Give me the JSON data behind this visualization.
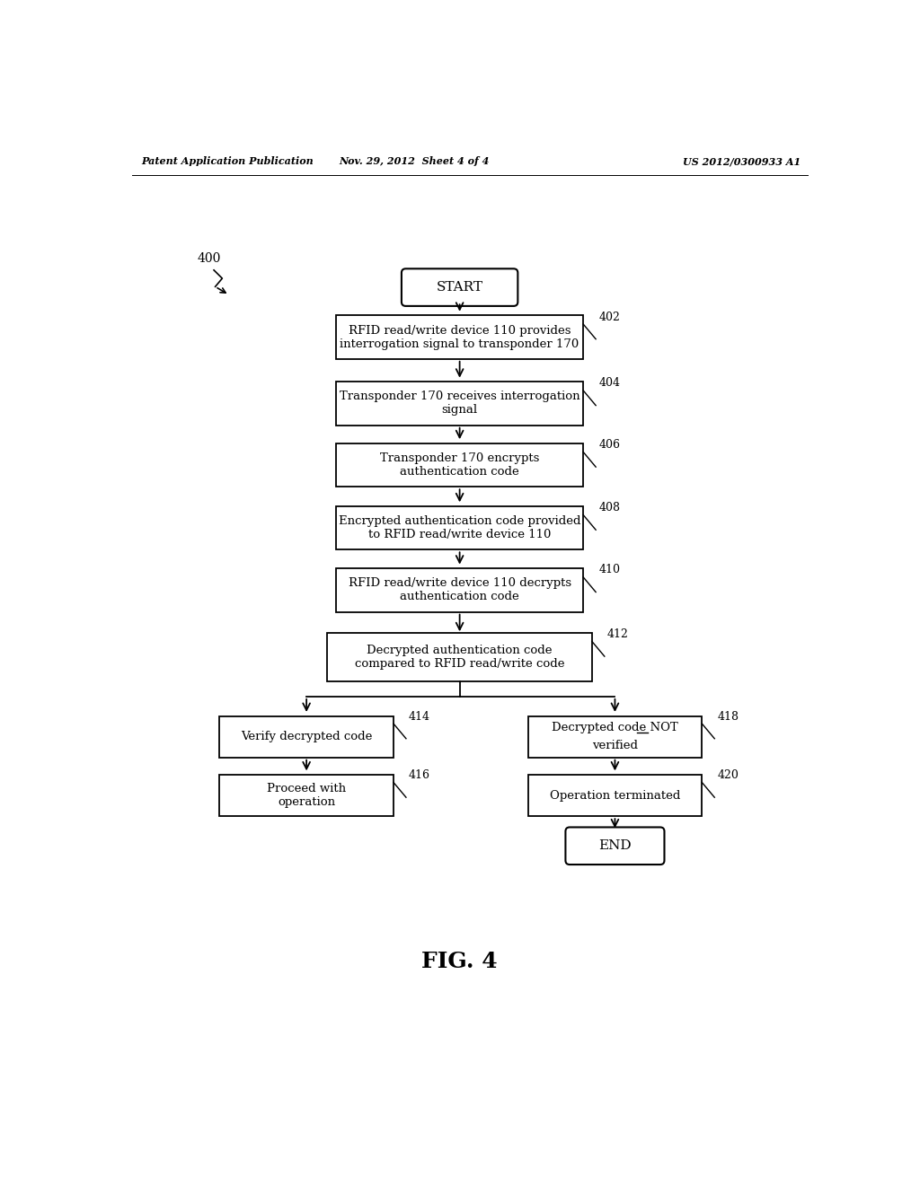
{
  "bg_color": "#ffffff",
  "header_left": "Patent Application Publication",
  "header_mid": "Nov. 29, 2012  Sheet 4 of 4",
  "header_right": "US 2012/0300933 A1",
  "fig_label": "FIG. 4",
  "diagram_label": "400"
}
